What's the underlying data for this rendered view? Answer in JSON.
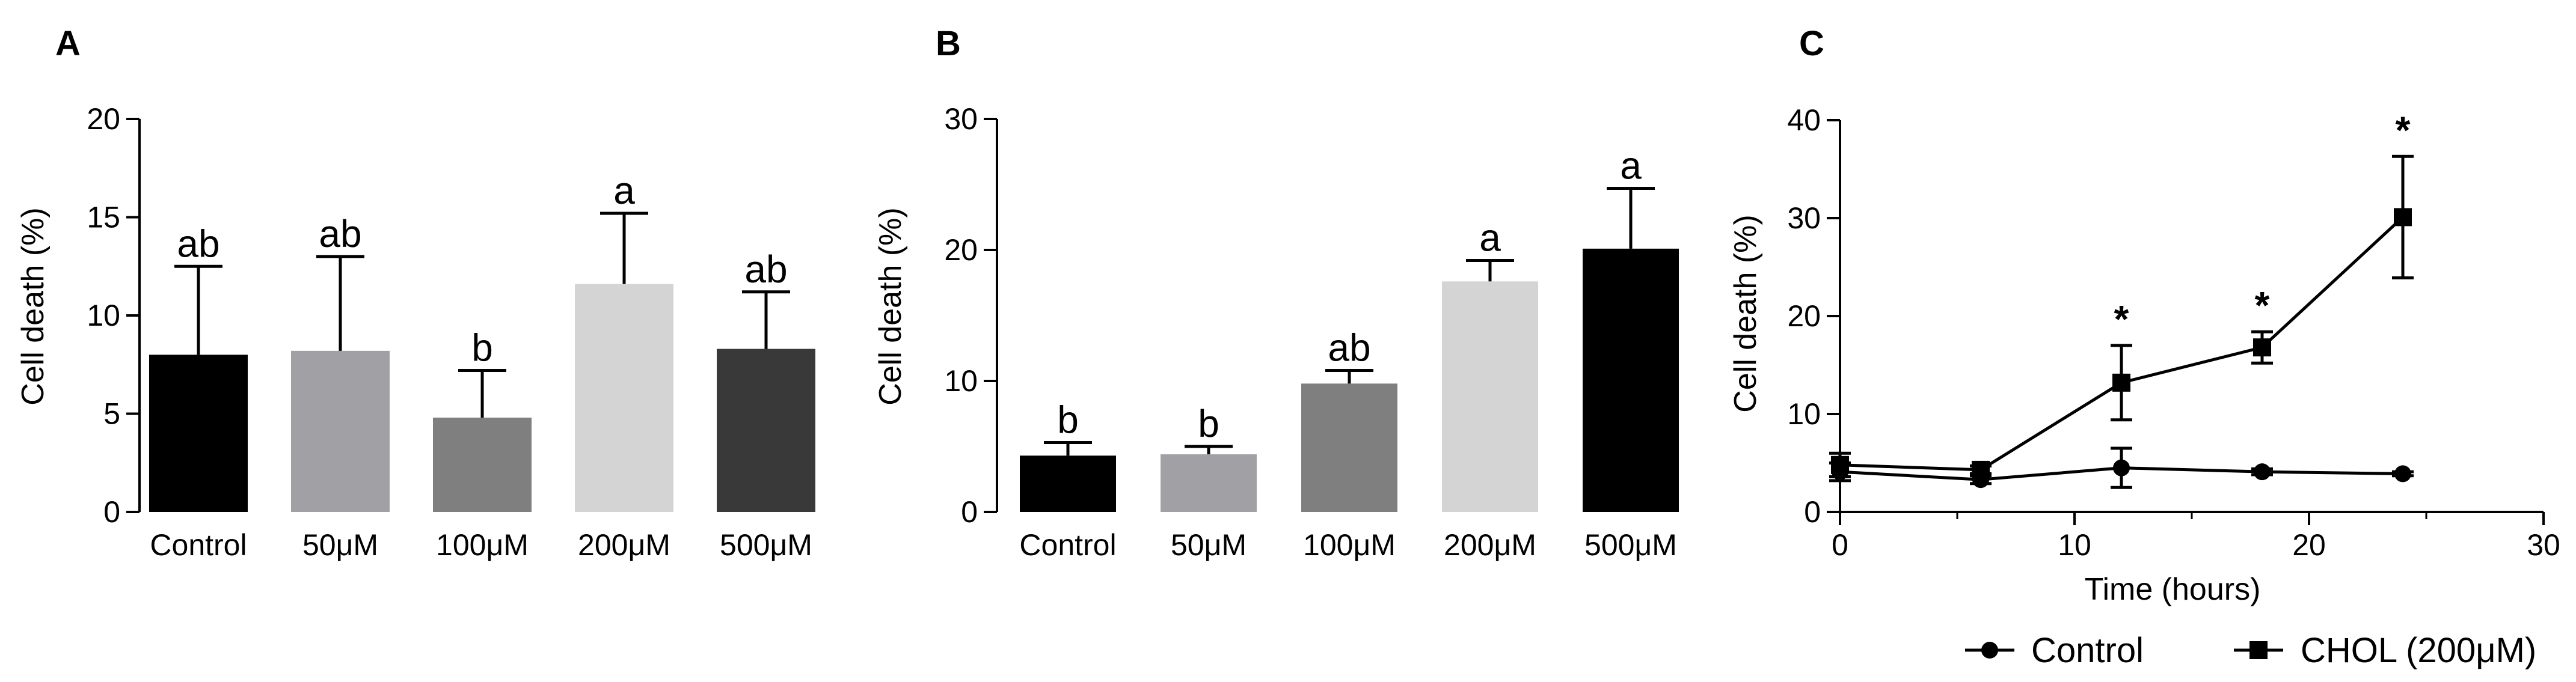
{
  "chart_data": [
    {
      "panel": "A",
      "type": "bar",
      "ylabel": "Cell death (%)",
      "xlabel": "",
      "ylim": [
        0,
        20
      ],
      "yticks": [
        "0",
        "5",
        "10",
        "15",
        "20"
      ],
      "categories": [
        "Control",
        "50μM",
        "100μM",
        "200μM",
        "500μM"
      ],
      "values": [
        8.0,
        8.2,
        4.8,
        11.6,
        8.3
      ],
      "errors": [
        4.5,
        4.8,
        2.4,
        3.6,
        2.9
      ],
      "labels": [
        "ab",
        "ab",
        "b",
        "a",
        "ab"
      ],
      "colors": [
        "#000000",
        "#a1a1a5",
        "#7f7f7f",
        "#d4d4d4",
        "#393939"
      ]
    },
    {
      "panel": "B",
      "type": "bar",
      "ylabel": "Cell death (%)",
      "xlabel": "",
      "ylim": [
        0,
        30
      ],
      "yticks": [
        "0",
        "10",
        "20",
        "30"
      ],
      "categories": [
        "Control",
        "50μM",
        "100μM",
        "200μM",
        "500μM"
      ],
      "values": [
        4.3,
        4.4,
        9.8,
        17.6,
        20.1
      ],
      "errors": [
        1.0,
        0.6,
        1.0,
        1.6,
        4.6
      ],
      "labels": [
        "b",
        "b",
        "ab",
        "a",
        "a"
      ],
      "colors": [
        "#000000",
        "#a1a1a5",
        "#7f7f7f",
        "#d4d4d4",
        "#000000"
      ]
    },
    {
      "panel": "C",
      "type": "line",
      "ylabel": "Cell death (%)",
      "xlabel": "Time (hours)",
      "xlim": [
        0,
        30
      ],
      "ylim": [
        0,
        40
      ],
      "xticks": [
        "0",
        "10",
        "20",
        "30"
      ],
      "yticks": [
        "0",
        "10",
        "20",
        "30",
        "40"
      ],
      "series": [
        {
          "name": "Control",
          "marker": "circle",
          "x": [
            0,
            6,
            12,
            18,
            24
          ],
          "y": [
            4.1,
            3.3,
            4.5,
            4.1,
            3.9
          ],
          "errors": [
            0.9,
            0.4,
            2.0,
            0.3,
            0.2
          ]
        },
        {
          "name": "CHOL (200μM)",
          "marker": "square",
          "x": [
            0,
            6,
            12,
            18,
            24
          ],
          "y": [
            4.8,
            4.3,
            13.2,
            16.8,
            30.1
          ],
          "errors": [
            1.2,
            0.4,
            3.8,
            1.6,
            6.2
          ]
        }
      ],
      "annotations": [
        {
          "x": 12,
          "text": "*"
        },
        {
          "x": 18,
          "text": "*"
        },
        {
          "x": 24,
          "text": "*"
        }
      ]
    }
  ]
}
